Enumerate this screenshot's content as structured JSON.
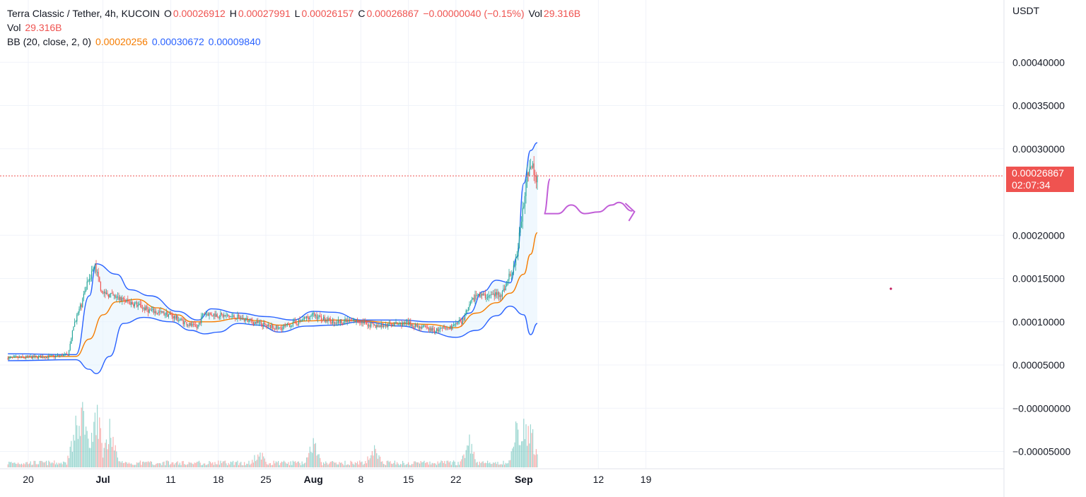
{
  "legend": {
    "symbol": "Terra Classic / Tether, 4h, KUCOIN",
    "o_label": "O",
    "o_value": "0.00026912",
    "h_label": "H",
    "h_value": "0.00027991",
    "l_label": "L",
    "l_value": "0.00026157",
    "c_label": "C",
    "c_value": "0.00026867",
    "change": "−0.00000040 (−0.15%)",
    "vol_label": "Vol",
    "vol_value": "29.316B",
    "vol2_label": "Vol",
    "vol2_value": "29.316B",
    "bb_label": "BB (20, close, 2, 0)",
    "bb_basis": "0.00020256",
    "bb_upper": "0.00030672",
    "bb_lower": "0.00009840"
  },
  "price_tag": {
    "value": "0.00026867",
    "countdown": "02:07:34"
  },
  "colors": {
    "up": "#26a69a",
    "down": "#ef5350",
    "basis": "#f57c00",
    "bands": "#2962ff",
    "fill": "#e3f2fd",
    "annotation": "#c15ed7"
  },
  "chart_data": {
    "type": "candlestick",
    "title": "Terra Classic / Tether, 4h, KUCOIN",
    "y_unit": "USDT",
    "y_ticks": [
      "0.00040000",
      "0.00035000",
      "0.00030000",
      "0.00020000",
      "0.00015000",
      "0.00010000",
      "0.00005000",
      "−0.00000000",
      "−0.00005000"
    ],
    "y_tick_values": [
      0.0004,
      0.00035,
      0.0003,
      0.0002,
      0.00015,
      0.0001,
      5e-05,
      0,
      -5e-05
    ],
    "x_ticks": [
      "20",
      "Jul",
      "11",
      "18",
      "25",
      "Aug",
      "8",
      "15",
      "22",
      "Sep",
      "12",
      "19"
    ],
    "x_tick_dates": [
      "2022-06-20",
      "2022-07-01",
      "2022-07-11",
      "2022-07-18",
      "2022-07-25",
      "2022-08-01",
      "2022-08-08",
      "2022-08-15",
      "2022-08-22",
      "2022-09-01",
      "2022-09-12",
      "2022-09-19"
    ],
    "grid": true,
    "price_path": [
      [
        "2022-06-17",
        5.8e-05
      ],
      [
        "2022-06-24",
        6e-05
      ],
      [
        "2022-06-26",
        6.2e-05
      ],
      [
        "2022-06-27",
        0.0001
      ],
      [
        "2022-06-28",
        0.00012
      ],
      [
        "2022-06-29",
        0.00015
      ],
      [
        "2022-06-30",
        0.000163
      ],
      [
        "2022-07-01",
        0.000135
      ],
      [
        "2022-07-03",
        0.000128
      ],
      [
        "2022-07-06",
        0.00012
      ],
      [
        "2022-07-08",
        0.000113
      ],
      [
        "2022-07-11",
        0.000108
      ],
      [
        "2022-07-13",
        0.0001
      ],
      [
        "2022-07-15",
        9.3e-05
      ],
      [
        "2022-07-16",
        0.00011
      ],
      [
        "2022-07-18",
        0.000108
      ],
      [
        "2022-07-21",
        0.000105
      ],
      [
        "2022-07-24",
        9.8e-05
      ],
      [
        "2022-07-27",
        9.2e-05
      ],
      [
        "2022-07-30",
        0.0001
      ],
      [
        "2022-08-01",
        0.000108
      ],
      [
        "2022-08-04",
        0.0001
      ],
      [
        "2022-08-08",
        0.000101
      ],
      [
        "2022-08-10",
        9.5e-05
      ],
      [
        "2022-08-15",
        9.8e-05
      ],
      [
        "2022-08-19",
        9e-05
      ],
      [
        "2022-08-21",
        9.2e-05
      ],
      [
        "2022-08-23",
        0.0001
      ],
      [
        "2022-08-25",
        0.00013
      ],
      [
        "2022-08-27",
        0.00013
      ],
      [
        "2022-08-29",
        0.000133
      ],
      [
        "2022-08-31",
        0.00017
      ],
      [
        "2022-09-01",
        0.00023
      ],
      [
        "2022-09-02",
        0.000285
      ],
      [
        "2022-09-03",
        0.000269
      ]
    ],
    "bb_upper_path": [
      [
        "2022-06-17",
        6.3e-05
      ],
      [
        "2022-06-27",
        6.2e-05
      ],
      [
        "2022-06-29",
        0.00013
      ],
      [
        "2022-06-30",
        0.000167
      ],
      [
        "2022-07-03",
        0.000155
      ],
      [
        "2022-07-05",
        0.000137
      ],
      [
        "2022-07-08",
        0.00013
      ],
      [
        "2022-07-12",
        0.000112
      ],
      [
        "2022-07-15",
        0.000102
      ],
      [
        "2022-07-17",
        0.000115
      ],
      [
        "2022-07-21",
        0.00011
      ],
      [
        "2022-07-25",
        0.000106
      ],
      [
        "2022-07-29",
        0.000102
      ],
      [
        "2022-08-01",
        0.000112
      ],
      [
        "2022-08-04",
        0.000111
      ],
      [
        "2022-08-08",
        0.000102
      ],
      [
        "2022-08-14",
        0.000102
      ],
      [
        "2022-08-18",
        0.0001
      ],
      [
        "2022-08-22",
        0.0001
      ],
      [
        "2022-08-24",
        0.00011
      ],
      [
        "2022-08-26",
        0.000135
      ],
      [
        "2022-08-28",
        0.000148
      ],
      [
        "2022-08-30",
        0.000145
      ],
      [
        "2022-08-31",
        0.000175
      ],
      [
        "2022-09-01",
        0.00026
      ],
      [
        "2022-09-02",
        0.000298
      ],
      [
        "2022-09-03",
        0.000307
      ]
    ],
    "bb_basis_path": [
      [
        "2022-06-17",
        5.9e-05
      ],
      [
        "2022-06-27",
        6e-05
      ],
      [
        "2022-06-29",
        8e-05
      ],
      [
        "2022-07-01",
        0.000108
      ],
      [
        "2022-07-03",
        0.000123
      ],
      [
        "2022-07-06",
        0.000126
      ],
      [
        "2022-07-09",
        0.000116
      ],
      [
        "2022-07-12",
        0.000108
      ],
      [
        "2022-07-14",
        0.0001
      ],
      [
        "2022-07-17",
        0.0001
      ],
      [
        "2022-07-21",
        0.000104
      ],
      [
        "2022-07-24",
        0.000101
      ],
      [
        "2022-07-27",
        9.6e-05
      ],
      [
        "2022-07-31",
        0.000101
      ],
      [
        "2022-08-04",
        0.000102
      ],
      [
        "2022-08-08",
        0.000101
      ],
      [
        "2022-08-14",
        9.8e-05
      ],
      [
        "2022-08-18",
        9.7e-05
      ],
      [
        "2022-08-22",
        9.3e-05
      ],
      [
        "2022-08-25",
        0.00011
      ],
      [
        "2022-08-28",
        0.000122
      ],
      [
        "2022-08-30",
        0.000133
      ],
      [
        "2022-09-01",
        0.000155
      ],
      [
        "2022-09-02",
        0.000178
      ],
      [
        "2022-09-03",
        0.000203
      ]
    ],
    "bb_lower_path": [
      [
        "2022-06-17",
        5.5e-05
      ],
      [
        "2022-06-27",
        5.6e-05
      ],
      [
        "2022-06-29",
        4.5e-05
      ],
      [
        "2022-06-30",
        4e-05
      ],
      [
        "2022-07-02",
        6e-05
      ],
      [
        "2022-07-04",
        9.8e-05
      ],
      [
        "2022-07-07",
        0.000105
      ],
      [
        "2022-07-11",
        0.0001
      ],
      [
        "2022-07-14",
        9e-05
      ],
      [
        "2022-07-16",
        8.6e-05
      ],
      [
        "2022-07-18",
        8.8e-05
      ],
      [
        "2022-07-21",
        9.8e-05
      ],
      [
        "2022-07-24",
        9.6e-05
      ],
      [
        "2022-07-27",
        8.8e-05
      ],
      [
        "2022-07-31",
        9.5e-05
      ],
      [
        "2022-08-04",
        9.6e-05
      ],
      [
        "2022-08-08",
        0.0001
      ],
      [
        "2022-08-14",
        9.5e-05
      ],
      [
        "2022-08-18",
        8.8e-05
      ],
      [
        "2022-08-22",
        8.2e-05
      ],
      [
        "2022-08-25",
        9e-05
      ],
      [
        "2022-08-28",
        0.000107
      ],
      [
        "2022-08-30",
        0.000118
      ],
      [
        "2022-09-01",
        0.000108
      ],
      [
        "2022-09-02",
        8.5e-05
      ],
      [
        "2022-09-03",
        9.8e-05
      ]
    ],
    "annotation_path": [
      [
        "2022-09-03",
        0.000265
      ],
      [
        "2022-09-04",
        0.000225
      ],
      [
        "2022-09-06",
        0.000225
      ],
      [
        "2022-09-08",
        0.000235
      ],
      [
        "2022-09-10",
        0.000225
      ],
      [
        "2022-09-12",
        0.000227
      ],
      [
        "2022-09-14",
        0.000235
      ],
      [
        "2022-09-15",
        0.000238
      ],
      [
        "2022-09-17",
        0.000228
      ]
    ],
    "volume_spikes": [
      [
        "2022-06-27",
        0.55
      ],
      [
        "2022-06-28",
        0.7
      ],
      [
        "2022-06-30",
        0.78
      ],
      [
        "2022-07-02",
        0.55
      ],
      [
        "2022-07-24",
        0.25
      ],
      [
        "2022-08-01",
        0.32
      ],
      [
        "2022-08-10",
        0.35
      ],
      [
        "2022-08-24",
        0.38
      ],
      [
        "2022-08-31",
        0.55
      ],
      [
        "2022-09-01",
        0.75
      ],
      [
        "2022-09-02",
        0.55
      ]
    ],
    "last_price": 0.00026867
  }
}
